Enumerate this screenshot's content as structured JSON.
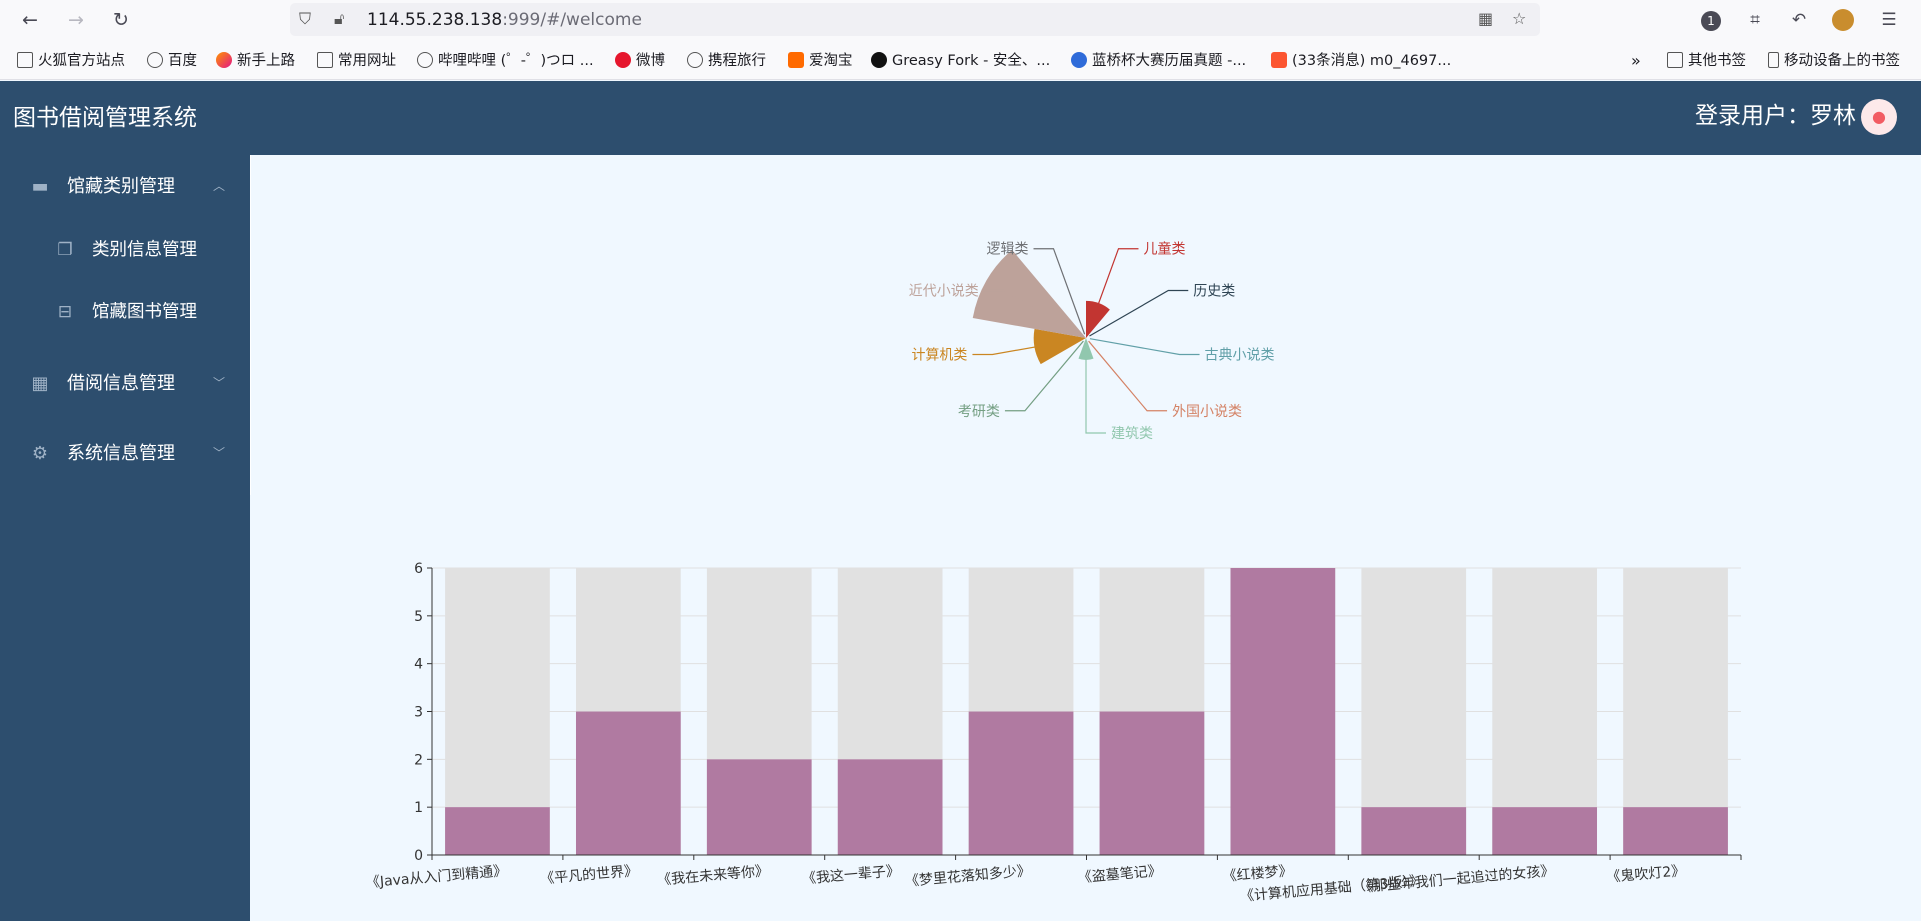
{
  "browser": {
    "url_host": "114.55.238.138",
    "url_rest": ":999/#/welcome",
    "badge_count": "1",
    "bookmarks": [
      {
        "label": "火狐官方站点",
        "icon": "folder"
      },
      {
        "label": "百度",
        "icon": "globe"
      },
      {
        "label": "新手上路",
        "icon": "fox"
      },
      {
        "label": "常用网址",
        "icon": "folder"
      },
      {
        "label": "哔哩哔哩 (゜-゜)つロ ...",
        "icon": "globe"
      },
      {
        "label": "微博",
        "icon": "weibo"
      },
      {
        "label": "携程旅行",
        "icon": "globe"
      },
      {
        "label": "爱淘宝",
        "icon": "taobao"
      },
      {
        "label": "Greasy Fork - 安全、...",
        "icon": "greasy"
      },
      {
        "label": "蓝桥杯大赛历届真题 -...",
        "icon": "lanqiao"
      },
      {
        "label": "(33条消息) m0_4697...",
        "icon": "csdn"
      }
    ],
    "other_bookmarks": "其他书签",
    "mobile_bookmarks": "移动设备上的书签"
  },
  "header": {
    "title": "图书借阅管理系统",
    "login_user": "登录用户：罗林"
  },
  "sidebar": {
    "menus": [
      {
        "label": "馆藏类别管理",
        "icon": "monitor-icon",
        "expanded": true,
        "children": [
          {
            "label": "类别信息管理",
            "icon": "copy-icon"
          },
          {
            "label": "馆藏图书管理",
            "icon": "inbox-icon"
          }
        ]
      },
      {
        "label": "借阅信息管理",
        "icon": "grid-icon",
        "expanded": false
      },
      {
        "label": "系统信息管理",
        "icon": "gear-icon",
        "expanded": false
      }
    ]
  },
  "colors": {
    "header_bg": "#2d4e6e",
    "main_bg": "#f0f8ff",
    "bar_fill": "#b07aa1",
    "bar_bg": "#e1e1e1"
  },
  "chart_data": [
    {
      "type": "pie",
      "rose": true,
      "categories": [
        "儿童类",
        "历史类",
        "古典小说类",
        "外国小说类",
        "建筑类",
        "考研类",
        "计算机类",
        "近代小说类",
        "逻辑类"
      ],
      "values": [
        2,
        0,
        0,
        0,
        1,
        0,
        3,
        6,
        0
      ],
      "colors": [
        "#c23531",
        "#2f4554",
        "#61a0a8",
        "#d48265",
        "#91c7ae",
        "#749f83",
        "#ca8622",
        "#bda29a",
        "#6e7074"
      ]
    },
    {
      "type": "bar",
      "categories": [
        "《Java从入门到精通》",
        "《平凡的世界》",
        "《我在未来等你》",
        "《我这一辈子》",
        "《梦里花落知多少》",
        "《盗墓笔记》",
        "《红楼梦》",
        "《计算机应用基础（第3版）》",
        "《那些年我们一起追过的女孩》",
        "《鬼吹灯2》"
      ],
      "values": [
        1,
        3,
        2,
        2,
        3,
        3,
        6,
        1,
        1,
        1
      ],
      "ylim": [
        0,
        6
      ],
      "yticks": [
        0,
        1,
        2,
        3,
        4,
        5,
        6
      ],
      "background_bar": true,
      "grid": true
    }
  ]
}
